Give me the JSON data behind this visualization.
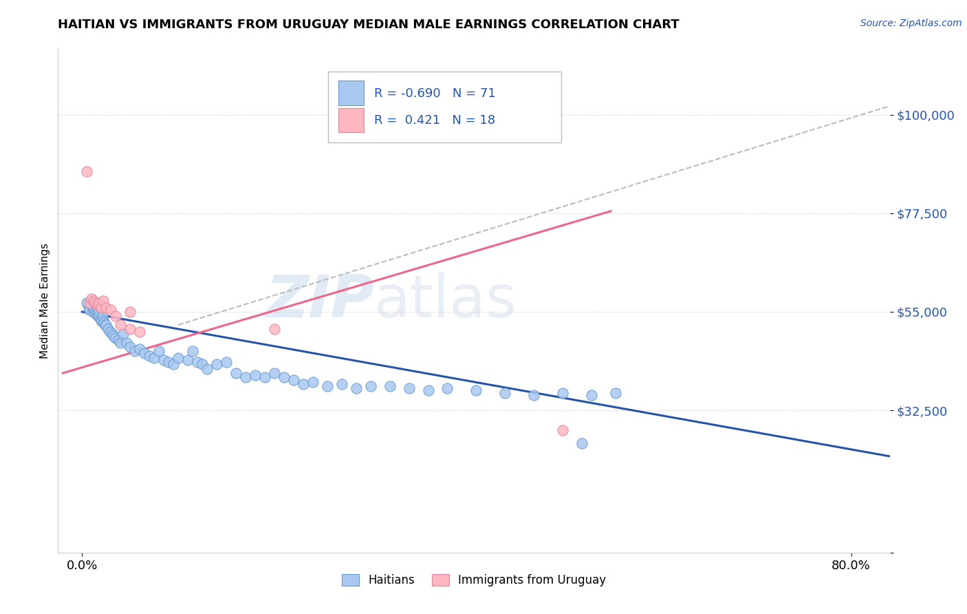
{
  "title": "HAITIAN VS IMMIGRANTS FROM URUGUAY MEDIAN MALE EARNINGS CORRELATION CHART",
  "source": "Source: ZipAtlas.com",
  "ylabel": "Median Male Earnings",
  "ytick_vals": [
    0,
    32500,
    55000,
    77500,
    100000
  ],
  "ytick_labels": [
    "",
    "$32,500",
    "$55,000",
    "$77,500",
    "$100,000"
  ],
  "xtick_vals": [
    0.0,
    0.8
  ],
  "xtick_labels": [
    "0.0%",
    "80.0%"
  ],
  "xlim": [
    -0.025,
    0.84
  ],
  "ylim": [
    5000,
    115000
  ],
  "color_blue_fill": "#A8C8F0",
  "color_blue_edge": "#6699CC",
  "color_pink_fill": "#FFB6C1",
  "color_pink_edge": "#DD8899",
  "color_blue_line": "#2255AA",
  "color_pink_line": "#EE6688",
  "color_gray_line": "#BBBBBB",
  "watermark_zip": "ZIP",
  "watermark_atlas": "atlas",
  "haitian_x": [
    0.005,
    0.007,
    0.008,
    0.009,
    0.01,
    0.011,
    0.012,
    0.013,
    0.014,
    0.015,
    0.016,
    0.017,
    0.018,
    0.019,
    0.02,
    0.021,
    0.022,
    0.023,
    0.024,
    0.025,
    0.027,
    0.029,
    0.031,
    0.033,
    0.035,
    0.038,
    0.04,
    0.043,
    0.046,
    0.05,
    0.055,
    0.06,
    0.065,
    0.07,
    0.075,
    0.08,
    0.085,
    0.09,
    0.095,
    0.1,
    0.11,
    0.115,
    0.12,
    0.125,
    0.13,
    0.14,
    0.15,
    0.16,
    0.17,
    0.18,
    0.19,
    0.2,
    0.21,
    0.22,
    0.23,
    0.24,
    0.255,
    0.27,
    0.285,
    0.3,
    0.32,
    0.34,
    0.36,
    0.38,
    0.41,
    0.44,
    0.47,
    0.5,
    0.53,
    0.555,
    0.52
  ],
  "haitian_y": [
    57000,
    56000,
    55500,
    57000,
    56500,
    55000,
    56000,
    55500,
    55000,
    54500,
    54000,
    55000,
    54000,
    53500,
    53000,
    54000,
    53000,
    52500,
    52000,
    52000,
    51000,
    50500,
    50000,
    49500,
    49000,
    48500,
    48000,
    50000,
    48000,
    47000,
    46000,
    46500,
    45500,
    45000,
    44500,
    46000,
    44000,
    43500,
    43000,
    44500,
    44000,
    46000,
    43500,
    43000,
    42000,
    43000,
    43500,
    41000,
    40000,
    40500,
    40000,
    41000,
    40000,
    39500,
    38500,
    39000,
    38000,
    38500,
    37500,
    38000,
    38000,
    37500,
    37000,
    37500,
    37000,
    36500,
    36000,
    36500,
    36000,
    36500,
    25000
  ],
  "uruguay_x": [
    0.005,
    0.008,
    0.01,
    0.012,
    0.014,
    0.016,
    0.018,
    0.02,
    0.022,
    0.025,
    0.03,
    0.035,
    0.04,
    0.05,
    0.06,
    0.2,
    0.5,
    0.05
  ],
  "uruguay_y": [
    87000,
    57000,
    58000,
    57500,
    57000,
    56500,
    57000,
    56000,
    57500,
    56000,
    55500,
    54000,
    52000,
    51000,
    50500,
    51000,
    28000,
    55000
  ],
  "blue_trend_x": [
    0.0,
    0.84
  ],
  "blue_trend_y": [
    55000,
    22000
  ],
  "pink_trend_x": [
    -0.02,
    0.55
  ],
  "pink_trend_y": [
    41000,
    78000
  ],
  "gray_trend_x": [
    0.1,
    0.84
  ],
  "gray_trend_y": [
    52000,
    102000
  ]
}
